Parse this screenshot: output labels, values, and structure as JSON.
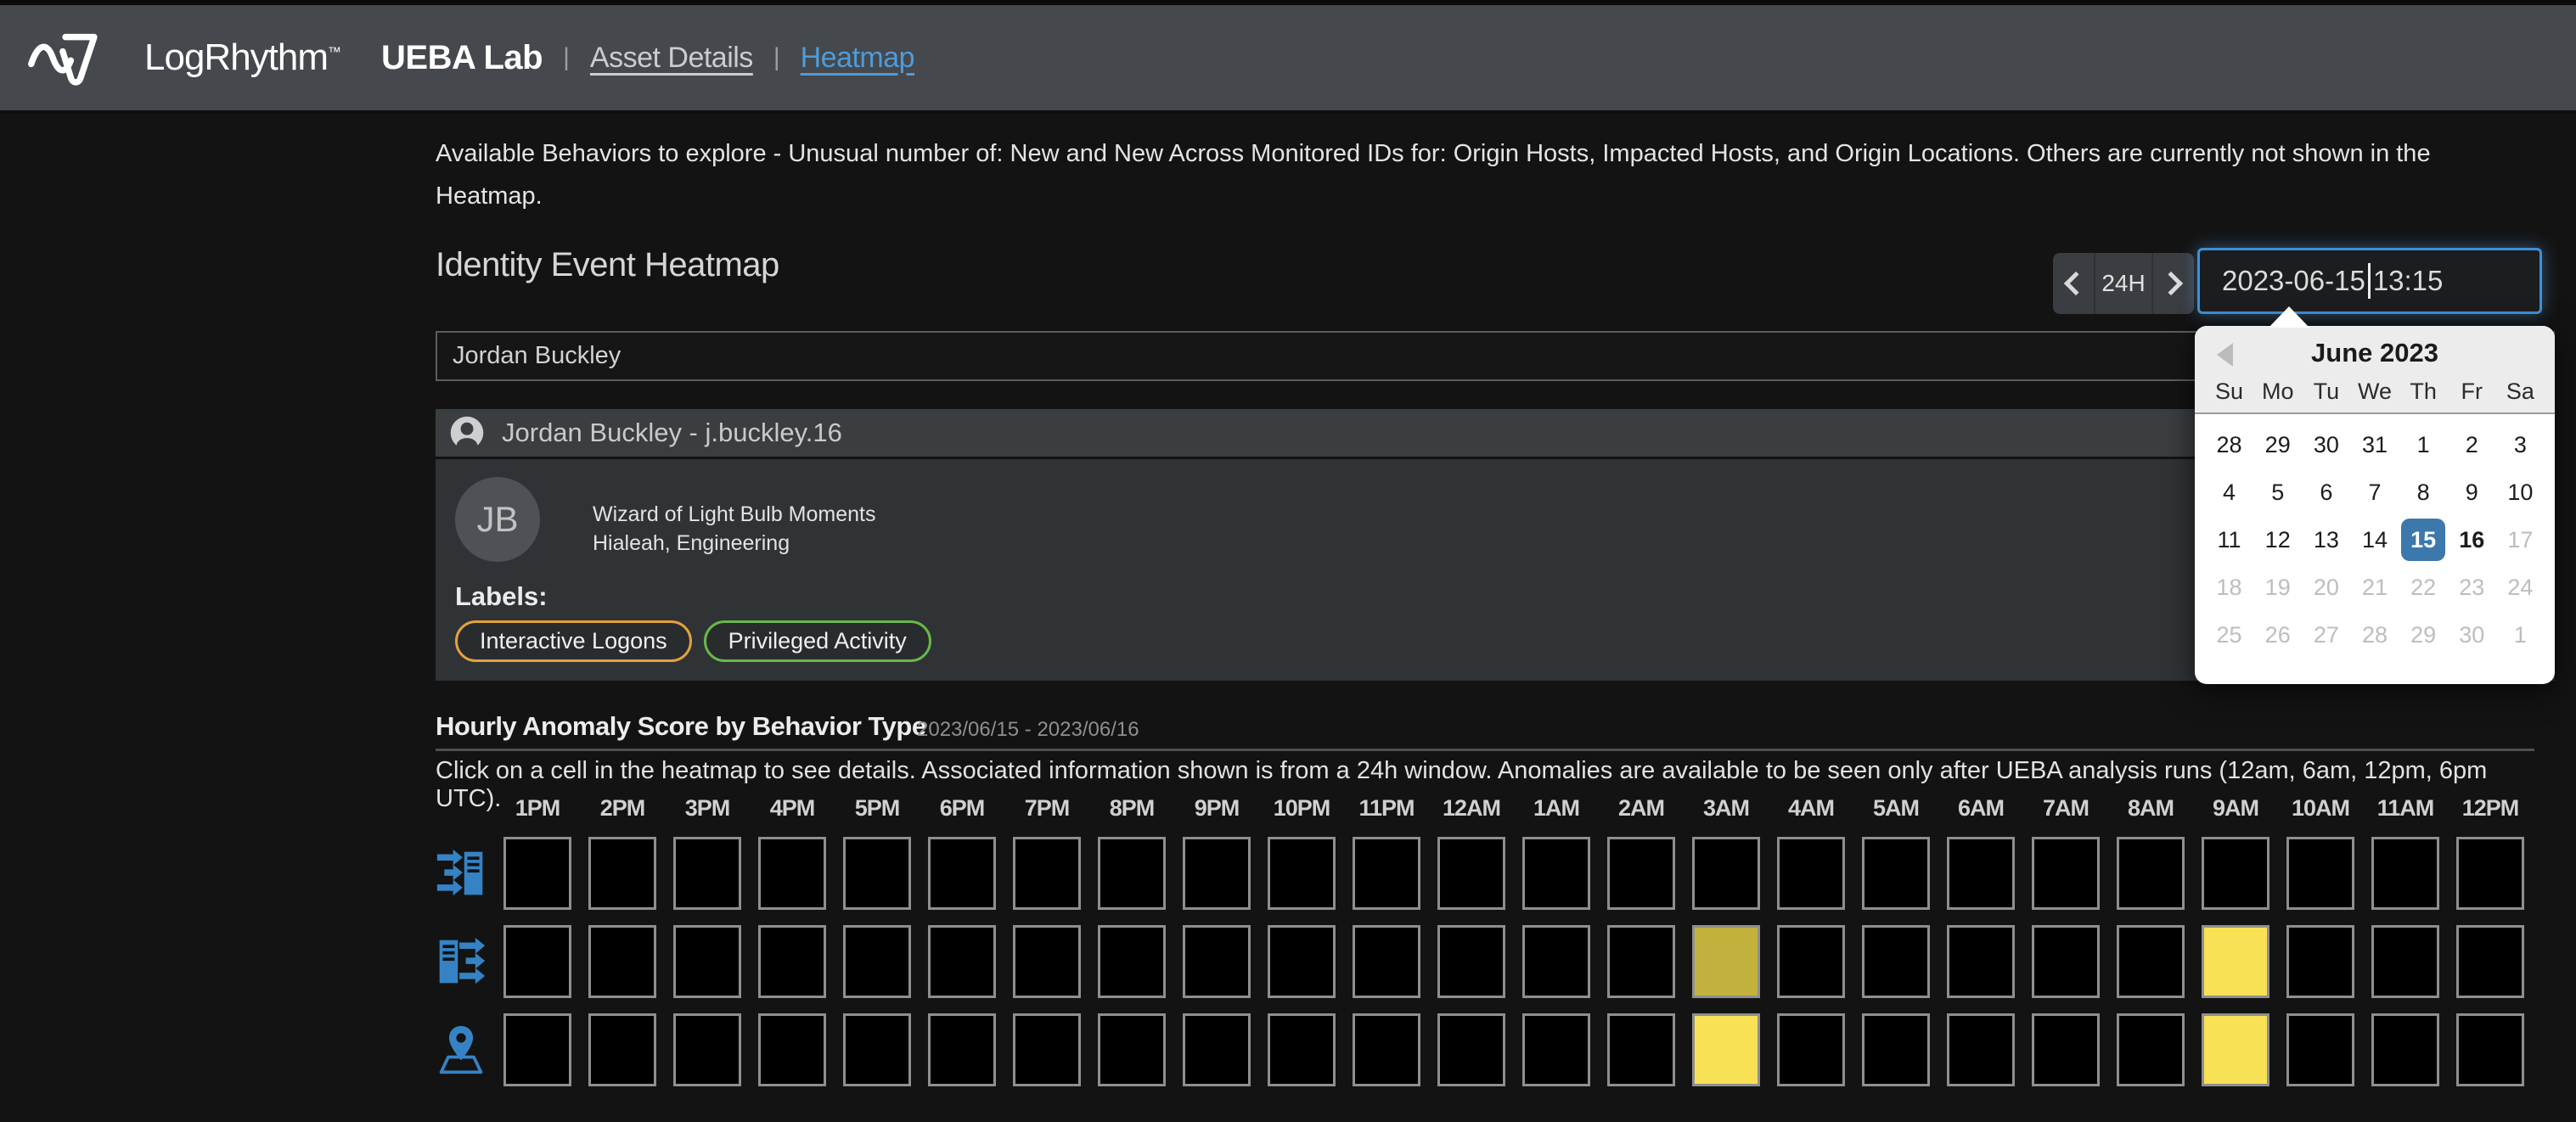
{
  "colors": {
    "accent_blue": "#3583c5",
    "link_blue": "#4f9bd8",
    "calendar_selected": "#3c78ab",
    "anomaly_none": "#000000",
    "anomaly_medium": "#c3b13e",
    "anomaly_high": "#f8e155",
    "badge_orange": "#e3a23c",
    "badge_green": "#67b946"
  },
  "navbar": {
    "brand": "LogRhythm",
    "brand_tm": "™",
    "app_title": "UEBA Lab",
    "divider": "|",
    "links": [
      {
        "label": "Asset Details",
        "active": false
      },
      {
        "label": "Heatmap",
        "active": true
      }
    ]
  },
  "intro_text": "Available Behaviors to explore - Unusual number of: New and New Across Monitored IDs for: Origin Hosts, Impacted Hosts, and Origin Locations. Others are currently not shown in the Heatmap.",
  "toolbar": {
    "title": "Identity Event Heatmap",
    "range_label": "24H",
    "datetime": {
      "value": "2023-06-15 13:15",
      "date_part": "2023-06-15",
      "time_part": "13:15"
    }
  },
  "calendar": {
    "month_title": "June 2023",
    "day_headers": [
      "Su",
      "Mo",
      "Tu",
      "We",
      "Th",
      "Fr",
      "Sa"
    ],
    "weeks": [
      [
        {
          "day": "28",
          "state": "adjacent"
        },
        {
          "day": "29",
          "state": "adjacent"
        },
        {
          "day": "30",
          "state": "adjacent"
        },
        {
          "day": "31",
          "state": "adjacent"
        },
        {
          "day": "1",
          "state": "normal"
        },
        {
          "day": "2",
          "state": "normal"
        },
        {
          "day": "3",
          "state": "normal"
        }
      ],
      [
        {
          "day": "4",
          "state": "normal"
        },
        {
          "day": "5",
          "state": "normal"
        },
        {
          "day": "6",
          "state": "normal"
        },
        {
          "day": "7",
          "state": "normal"
        },
        {
          "day": "8",
          "state": "normal"
        },
        {
          "day": "9",
          "state": "normal"
        },
        {
          "day": "10",
          "state": "normal"
        }
      ],
      [
        {
          "day": "11",
          "state": "normal"
        },
        {
          "day": "12",
          "state": "normal"
        },
        {
          "day": "13",
          "state": "normal"
        },
        {
          "day": "14",
          "state": "normal"
        },
        {
          "day": "15",
          "state": "selected"
        },
        {
          "day": "16",
          "state": "emphasis"
        },
        {
          "day": "17",
          "state": "disabled"
        }
      ],
      [
        {
          "day": "18",
          "state": "disabled"
        },
        {
          "day": "19",
          "state": "disabled"
        },
        {
          "day": "20",
          "state": "disabled"
        },
        {
          "day": "21",
          "state": "disabled"
        },
        {
          "day": "22",
          "state": "disabled"
        },
        {
          "day": "23",
          "state": "disabled"
        },
        {
          "day": "24",
          "state": "disabled"
        }
      ],
      [
        {
          "day": "25",
          "state": "disabled"
        },
        {
          "day": "26",
          "state": "disabled"
        },
        {
          "day": "27",
          "state": "disabled"
        },
        {
          "day": "28",
          "state": "disabled"
        },
        {
          "day": "29",
          "state": "disabled"
        },
        {
          "day": "30",
          "state": "disabled"
        },
        {
          "day": "1",
          "state": "disabled"
        }
      ]
    ]
  },
  "user_select": {
    "value": "Jordan Buckley"
  },
  "user_panel": {
    "header": "Jordan Buckley - j.buckley.16",
    "avatar_initials": "JB",
    "role": "Wizard of Light Bulb Moments",
    "location": "Hialeah, Engineering",
    "labels_title": "Labels:",
    "labels": [
      {
        "text": "Interactive Logons",
        "color": "#e3a23c"
      },
      {
        "text": "Privileged Activity",
        "color": "#67b946"
      }
    ]
  },
  "anomaly": {
    "title": "Hourly Anomaly Score by Behavior Type",
    "date_range": "2023/06/15 - 2023/06/16",
    "instructions": "Click on a cell in the heatmap to see details. Associated information shown is from a 24h window. Anomalies are available to be seen only after UEBA analysis runs (12am, 6am, 12pm, 6pm UTC)."
  },
  "chart_data": {
    "type": "heatmap",
    "title": "Hourly Anomaly Score by Behavior Type",
    "date_range": "2023/06/15 - 2023/06/16",
    "x_labels": [
      "1PM",
      "2PM",
      "3PM",
      "4PM",
      "5PM",
      "6PM",
      "7PM",
      "8PM",
      "9PM",
      "10PM",
      "11PM",
      "12AM",
      "1AM",
      "2AM",
      "3AM",
      "4AM",
      "5AM",
      "6AM",
      "7AM",
      "8AM",
      "9AM",
      "10AM",
      "11AM",
      "12PM"
    ],
    "rows": [
      {
        "key": "origin-hosts",
        "icon": "hosts-inbound-arrows-icon",
        "values": [
          0,
          0,
          0,
          0,
          0,
          0,
          0,
          0,
          0,
          0,
          0,
          0,
          0,
          0,
          0,
          0,
          0,
          0,
          0,
          0,
          0,
          0,
          0,
          0
        ]
      },
      {
        "key": "impacted-hosts",
        "icon": "hosts-outbound-arrows-icon",
        "values": [
          0,
          0,
          0,
          0,
          0,
          0,
          0,
          0,
          0,
          0,
          0,
          0,
          0,
          0,
          1,
          0,
          0,
          0,
          0,
          0,
          2,
          0,
          0,
          0
        ]
      },
      {
        "key": "origin-locations",
        "icon": "map-pin-icon",
        "values": [
          0,
          0,
          0,
          0,
          0,
          0,
          0,
          0,
          0,
          0,
          0,
          0,
          0,
          0,
          2,
          0,
          0,
          0,
          0,
          0,
          2,
          0,
          0,
          0
        ]
      }
    ],
    "palette": {
      "0": "#000000",
      "1": "#c3b13e",
      "2": "#f8e155"
    },
    "legend": "none",
    "grid": "off"
  }
}
